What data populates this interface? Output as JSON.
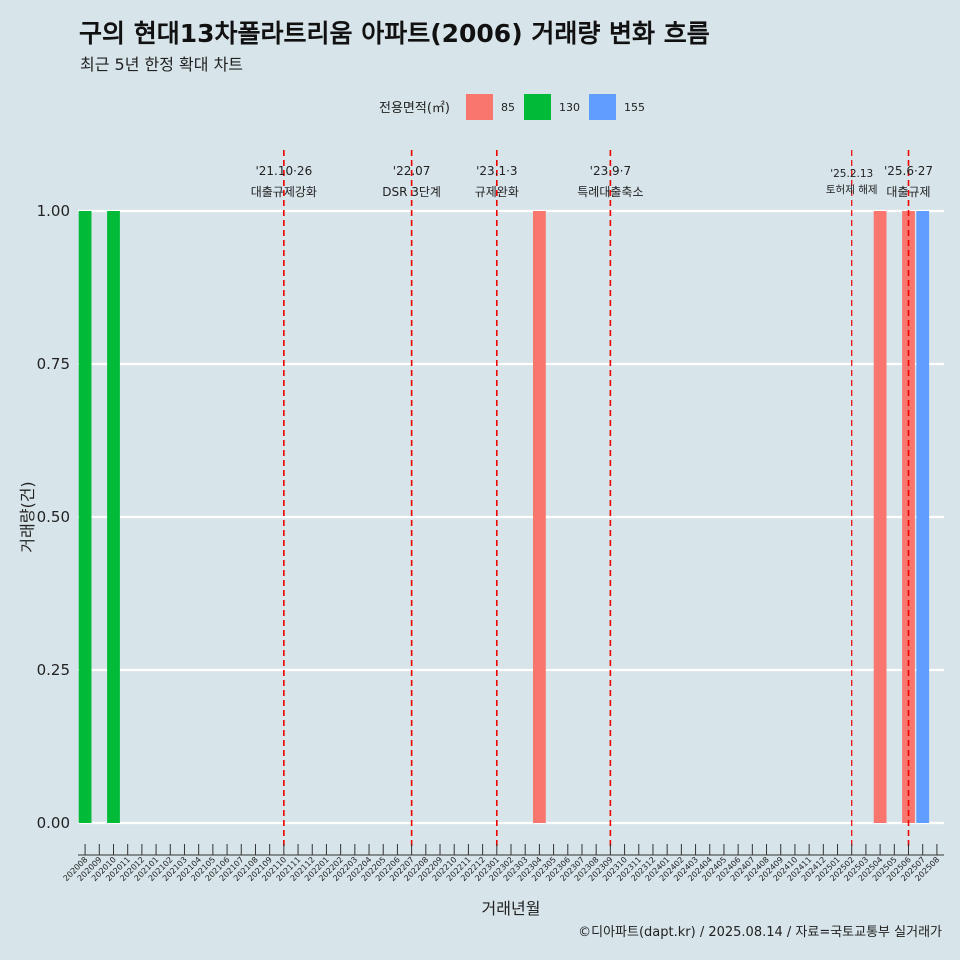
{
  "title": "구의 현대13차폴라트리움 아파트(2006) 거래량 변화 흐름",
  "subtitle": "최근 5년 한정 확대 차트",
  "caption": "©디아파트(dapt.kr) / 2025.08.14 / 자료=국토교통부 실거래가",
  "colors": {
    "background": "#d7e4ea",
    "grid": "#ffffff",
    "annotation_line": "#ee0000"
  },
  "chart_data": {
    "type": "bar",
    "xlabel": "거래년월",
    "ylabel": "거래량(건)",
    "ylim": [
      0,
      1
    ],
    "y_ticks": [
      "0.00",
      "0.25",
      "0.50",
      "0.75",
      "1.00"
    ],
    "grid": true,
    "legend": {
      "title": "전용면적(㎡)",
      "position": "top",
      "entries": [
        {
          "label": "85",
          "color": "#f8766d"
        },
        {
          "label": "130",
          "color": "#00ba38"
        },
        {
          "label": "155",
          "color": "#619cff"
        }
      ]
    },
    "categories": [
      "202008",
      "202009",
      "202010",
      "202011",
      "202012",
      "202101",
      "202102",
      "202103",
      "202104",
      "202105",
      "202106",
      "202107",
      "202108",
      "202109",
      "202110",
      "202111",
      "202112",
      "202201",
      "202202",
      "202203",
      "202204",
      "202205",
      "202206",
      "202207",
      "202208",
      "202209",
      "202210",
      "202211",
      "202212",
      "202301",
      "202302",
      "202303",
      "202304",
      "202305",
      "202306",
      "202307",
      "202308",
      "202309",
      "202310",
      "202311",
      "202312",
      "202401",
      "202402",
      "202403",
      "202404",
      "202405",
      "202406",
      "202407",
      "202408",
      "202409",
      "202410",
      "202411",
      "202412",
      "202501",
      "202502",
      "202503",
      "202504",
      "202505",
      "202506",
      "202507",
      "202508"
    ],
    "series": [
      {
        "name": "85",
        "color": "#f8766d",
        "values": [
          0,
          0,
          0,
          0,
          0,
          0,
          0,
          0,
          0,
          0,
          0,
          0,
          0,
          0,
          0,
          0,
          0,
          0,
          0,
          0,
          0,
          0,
          0,
          0,
          0,
          0,
          0,
          0,
          0,
          0,
          0,
          0,
          1,
          0,
          0,
          0,
          0,
          0,
          0,
          0,
          0,
          0,
          0,
          0,
          0,
          0,
          0,
          0,
          0,
          0,
          0,
          0,
          0,
          0,
          0,
          0,
          1,
          0,
          1,
          0,
          0
        ]
      },
      {
        "name": "130",
        "color": "#00ba38",
        "values": [
          1,
          0,
          1,
          0,
          0,
          0,
          0,
          0,
          0,
          0,
          0,
          0,
          0,
          0,
          0,
          0,
          0,
          0,
          0,
          0,
          0,
          0,
          0,
          0,
          0,
          0,
          0,
          0,
          0,
          0,
          0,
          0,
          0,
          0,
          0,
          0,
          0,
          0,
          0,
          0,
          0,
          0,
          0,
          0,
          0,
          0,
          0,
          0,
          0,
          0,
          0,
          0,
          0,
          0,
          0,
          0,
          0,
          0,
          0,
          0,
          0
        ]
      },
      {
        "name": "155",
        "color": "#619cff",
        "values": [
          0,
          0,
          0,
          0,
          0,
          0,
          0,
          0,
          0,
          0,
          0,
          0,
          0,
          0,
          0,
          0,
          0,
          0,
          0,
          0,
          0,
          0,
          0,
          0,
          0,
          0,
          0,
          0,
          0,
          0,
          0,
          0,
          0,
          0,
          0,
          0,
          0,
          0,
          0,
          0,
          0,
          0,
          0,
          0,
          0,
          0,
          0,
          0,
          0,
          0,
          0,
          0,
          0,
          0,
          0,
          0,
          0,
          0,
          0,
          1,
          0
        ]
      }
    ],
    "annotations": [
      {
        "x": "202110",
        "date": "'21.10·26",
        "label": "대출규제강화"
      },
      {
        "x": "202207",
        "date": "'22.07",
        "label": "DSR 3단계"
      },
      {
        "x": "202301",
        "date": "'23.1·3",
        "label": "규제완화"
      },
      {
        "x": "202309",
        "date": "'23.9·7",
        "label": "특례대출축소"
      },
      {
        "x": "202502",
        "date": "'25.2.13",
        "label": "토허제 해제"
      },
      {
        "x": "202506",
        "date": "'25.6·27",
        "label": "대출규제"
      }
    ]
  }
}
